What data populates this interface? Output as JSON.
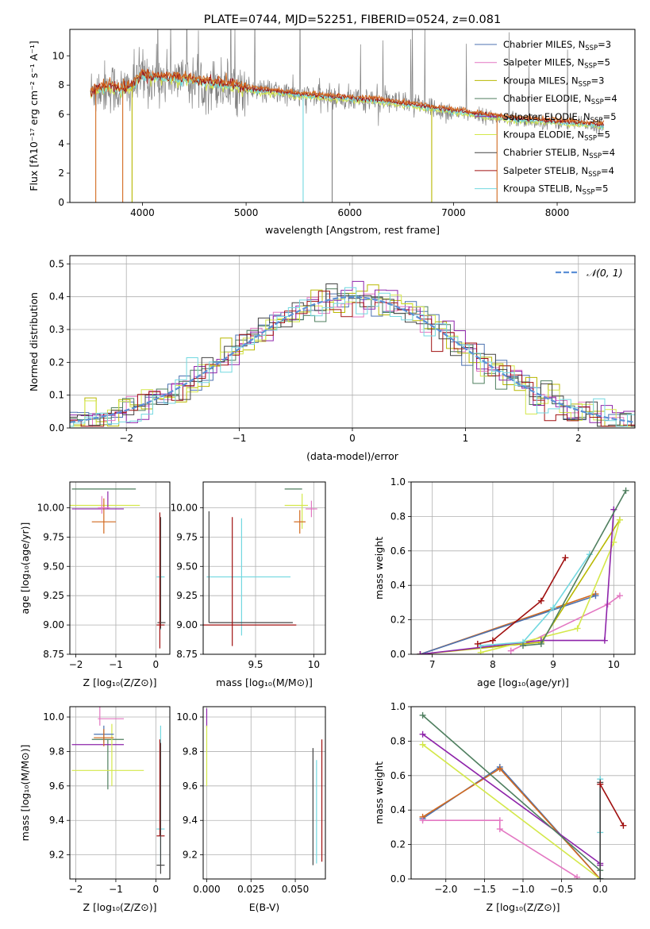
{
  "colors": {
    "chabrier_miles": "#4c72b0",
    "salpeter_miles": "#e377c2",
    "kroupa_miles": "#b8b800",
    "chabrier_elodie": "#4f7f5f",
    "salpeter_elodie": "#8e24aa",
    "kroupa_elodie": "#d4e84a",
    "chabrier_stelib": "#444444",
    "salpeter_stelib": "#a01010",
    "kroupa_stelib": "#72d8e0",
    "orange": "#d2691e",
    "gray": "#808080",
    "gauss": "#5b8fd6"
  },
  "chart_data": [
    {
      "id": "spectrum",
      "type": "line",
      "title": "PLATE=0744, MJD=52251, FIBERID=0524, z=0.081",
      "xlabel": "wavelength [Angstrom, rest frame]",
      "ylabel": "Flux [fλ10⁻¹⁷ erg cm⁻² s⁻¹ A⁻¹]",
      "xlim": [
        3300,
        8750
      ],
      "ylim": [
        0,
        11.8
      ],
      "xticks": [
        4000,
        5000,
        6000,
        7000,
        8000
      ],
      "yticks": [
        0,
        2,
        4,
        6,
        8,
        10
      ],
      "grid": false,
      "legend_position": "top-right",
      "data_range": [
        3500,
        8450
      ],
      "continuum": {
        "x": [
          3500,
          3600,
          3700,
          3800,
          3900,
          4000,
          4100,
          4300,
          4500,
          4700,
          4900,
          5100,
          5300,
          5500,
          5700,
          5900,
          6100,
          6300,
          6500,
          6700,
          6900,
          7100,
          7300,
          7500,
          7700,
          7900,
          8100,
          8300,
          8450
        ],
        "y": [
          7.5,
          7.8,
          7.9,
          7.6,
          7.9,
          8.7,
          8.5,
          8.5,
          8.3,
          8.1,
          7.9,
          7.6,
          7.5,
          7.3,
          7.2,
          7.1,
          7.0,
          6.9,
          6.7,
          6.5,
          6.3,
          6.1,
          5.9,
          5.7,
          5.6,
          5.5,
          5.4,
          5.3,
          5.2
        ]
      },
      "series": [
        {
          "name": "Chabrier MILES, N_SSP=3",
          "label_main": "Chabrier MILES, N",
          "label_sub": "SSP",
          "label_tail": "=3",
          "color": "#4c72b0"
        },
        {
          "name": "Salpeter MILES, N_SSP=5",
          "label_main": "Salpeter MILES, N",
          "label_sub": "SSP",
          "label_tail": "=5",
          "color": "#e377c2"
        },
        {
          "name": "Kroupa MILES, N_SSP=3",
          "label_main": "Kroupa MILES, N",
          "label_sub": "SSP",
          "label_tail": "=3",
          "color": "#b8b800"
        },
        {
          "name": "Chabrier ELODIE, N_SSP=4",
          "label_main": "Chabrier ELODIE, N",
          "label_sub": "SSP",
          "label_tail": "=4",
          "color": "#4f7f5f"
        },
        {
          "name": "Salpeter ELODIE, N_SSP=5",
          "label_main": "Salpeter ELODIE, N",
          "label_sub": "SSP",
          "label_tail": "=5",
          "color": "#8e24aa"
        },
        {
          "name": "Kroupa ELODIE, N_SSP=5",
          "label_main": "Kroupa ELODIE, N",
          "label_sub": "SSP",
          "label_tail": "=5",
          "color": "#d4e84a"
        },
        {
          "name": "Chabrier STELIB, N_SSP=4",
          "label_main": "Chabrier STELIB, N",
          "label_sub": "SSP",
          "label_tail": "=4",
          "color": "#444444"
        },
        {
          "name": "Salpeter STELIB, N_SSP=4",
          "label_main": "Salpeter STELIB, N",
          "label_sub": "SSP",
          "label_tail": "=4",
          "color": "#a01010"
        },
        {
          "name": "Kroupa STELIB, N_SSP=5",
          "label_main": "Kroupa STELIB, N",
          "label_sub": "SSP",
          "label_tail": "=5",
          "color": "#72d8e0"
        }
      ],
      "dropouts": [
        {
          "x": 3550,
          "color": "#d2691e"
        },
        {
          "x": 3810,
          "color": "#d2691e"
        },
        {
          "x": 3900,
          "color": "#b8b800"
        },
        {
          "x": 5550,
          "color": "#72d8e0"
        },
        {
          "x": 5830,
          "color": "#808080"
        },
        {
          "x": 6790,
          "color": "#b8b800"
        },
        {
          "x": 7420,
          "color": "#d2691e"
        }
      ]
    },
    {
      "id": "residuals",
      "type": "histogram",
      "xlabel": "(data-model)/error",
      "ylabel": "Normed distribution",
      "xlim": [
        -2.5,
        2.5
      ],
      "ylim": [
        0,
        0.525
      ],
      "xticks": [
        -2,
        -1,
        0,
        1,
        2
      ],
      "yticks": [
        0.0,
        0.1,
        0.2,
        0.3,
        0.4,
        0.5
      ],
      "grid": true,
      "legend_position": "top-right",
      "gauss_label": "𝒩(0, 1)",
      "bin_width": 0.1,
      "gauss_mean": 0,
      "gauss_sigma": 1
    },
    {
      "id": "age_vs_z",
      "type": "errorbar",
      "xlabel": "Z [log₁₀(Z/Z⊙)]",
      "ylabel": "age  [log₁₀(age/yr)]",
      "xlim": [
        -2.15,
        0.35
      ],
      "ylim": [
        8.75,
        10.22
      ],
      "xticks": [
        -2,
        -1,
        0
      ],
      "yticks": [
        8.75,
        9.0,
        9.25,
        9.5,
        9.75,
        10.0
      ],
      "grid": true,
      "points": [
        {
          "x": -1.1,
          "y": 10.16,
          "xerr": [
            1.0,
            0.6
          ],
          "yerr": [
            0,
            0
          ],
          "color": "#4f7f5f"
        },
        {
          "x": -1.0,
          "y": 10.02,
          "xerr": [
            1.2,
            0.6
          ],
          "yerr": [
            0,
            0
          ],
          "color": "#d4e84a"
        },
        {
          "x": -1.2,
          "y": 9.99,
          "xerr": [
            0.9,
            0.4
          ],
          "yerr": [
            0.0,
            0.15
          ],
          "color": "#8e24aa"
        },
        {
          "x": -1.3,
          "y": 9.88,
          "xerr": [
            0.3,
            0.3
          ],
          "yerr": [
            0.1,
            0.2
          ],
          "color": "#d2691e"
        },
        {
          "x": -1.35,
          "y": 10.0,
          "xerr": [
            0.1,
            0.2
          ],
          "yerr": [
            0.05,
            0.1
          ],
          "color": "#e377c2"
        },
        {
          "x": 0.12,
          "y": 9.41,
          "xerr": [
            0.1,
            0.1
          ],
          "yerr": [
            0.45,
            0.5
          ],
          "color": "#72d8e0"
        },
        {
          "x": 0.12,
          "y": 9.02,
          "xerr": [
            0.08,
            0.12
          ],
          "yerr": [
            0.05,
            0.9
          ],
          "color": "#444444"
        },
        {
          "x": 0.1,
          "y": 9.0,
          "xerr": [
            0.08,
            0.12
          ],
          "yerr": [
            0.2,
            0.96
          ],
          "color": "#a01010"
        }
      ]
    },
    {
      "id": "age_vs_mass",
      "type": "errorbar",
      "xlabel": "mass [log₁₀(M/M⊙)]",
      "ylabel": "",
      "xlim": [
        9.05,
        10.1
      ],
      "ylim": [
        8.75,
        10.22
      ],
      "xticks": [
        9.5,
        10.0
      ],
      "yticks": [
        8.75,
        9.0,
        9.25,
        9.5,
        9.75,
        10.0
      ],
      "grid": true,
      "points": [
        {
          "x": 9.85,
          "y": 10.16,
          "xerr": [
            0.1,
            0.05
          ],
          "yerr": [
            0,
            0
          ],
          "color": "#4f7f5f"
        },
        {
          "x": 9.9,
          "y": 10.02,
          "xerr": [
            0.15,
            0.05
          ],
          "yerr": [
            0.2,
            0.1
          ],
          "color": "#d4e84a"
        },
        {
          "x": 9.98,
          "y": 9.99,
          "xerr": [
            0.05,
            0.05
          ],
          "yerr": [
            0.07,
            0.07
          ],
          "color": "#e377c2"
        },
        {
          "x": 9.88,
          "y": 9.88,
          "xerr": [
            0.05,
            0.05
          ],
          "yerr": [
            0.1,
            0.1
          ],
          "color": "#d2691e"
        },
        {
          "x": 9.38,
          "y": 9.41,
          "xerr": [
            0.3,
            0.42
          ],
          "yerr": [
            0.5,
            0.5
          ],
          "color": "#72d8e0"
        },
        {
          "x": 9.1,
          "y": 9.02,
          "xerr": [
            0.0,
            0.72
          ],
          "yerr": [
            0.0,
            0.95
          ],
          "color": "#444444"
        },
        {
          "x": 9.3,
          "y": 9.0,
          "xerr": [
            0.25,
            0.55
          ],
          "yerr": [
            0.18,
            0.92
          ],
          "color": "#a01010"
        }
      ]
    },
    {
      "id": "weight_vs_age",
      "type": "line",
      "xlabel": "age  [log₁₀(age/yr)]",
      "ylabel": "mass weight",
      "xlim": [
        6.65,
        10.35
      ],
      "ylim": [
        0,
        1.0
      ],
      "xticks": [
        7,
        8,
        9,
        10
      ],
      "yticks": [
        0.0,
        0.2,
        0.4,
        0.6,
        0.8,
        1.0
      ],
      "grid": true,
      "series": [
        {
          "color": "#d2691e",
          "x": [
            6.8,
            9.7
          ],
          "y": [
            0.0,
            0.35
          ]
        },
        {
          "color": "#4c72b0",
          "x": [
            6.8,
            9.7
          ],
          "y": [
            0.0,
            0.34
          ]
        },
        {
          "color": "#e377c2",
          "x": [
            8.3,
            9.9,
            10.1
          ],
          "y": [
            0.02,
            0.29,
            0.34
          ]
        },
        {
          "color": "#b8b800",
          "x": [
            6.8,
            8.8,
            10.1
          ],
          "y": [
            0.0,
            0.07,
            0.78
          ]
        },
        {
          "color": "#d4e84a",
          "x": [
            7.8,
            9.4,
            10.0,
            10.1
          ],
          "y": [
            0.01,
            0.15,
            0.65,
            0.78
          ]
        },
        {
          "color": "#8e24aa",
          "x": [
            6.8,
            8.8,
            9.85,
            10.0
          ],
          "y": [
            0.0,
            0.08,
            0.08,
            0.84
          ]
        },
        {
          "color": "#72d8e0",
          "x": [
            7.8,
            8.5,
            9.0,
            9.6
          ],
          "y": [
            0.05,
            0.07,
            0.27,
            0.58
          ]
        },
        {
          "color": "#4f7f5f",
          "x": [
            8.5,
            8.8,
            10.2
          ],
          "y": [
            0.05,
            0.06,
            0.95
          ]
        },
        {
          "color": "#a01010",
          "x": [
            7.75,
            8.0,
            8.8,
            9.2
          ],
          "y": [
            0.06,
            0.08,
            0.31,
            0.56
          ]
        }
      ]
    },
    {
      "id": "mass_vs_z",
      "type": "errorbar",
      "xlabel": "Z [log₁₀(Z/Z⊙)]",
      "ylabel": "mass [log₁₀(M/M⊙)]",
      "xlim": [
        -2.15,
        0.35
      ],
      "ylim": [
        9.06,
        10.06
      ],
      "xticks": [
        -2,
        -1,
        0
      ],
      "yticks": [
        9.2,
        9.4,
        9.6,
        9.8,
        10.0
      ],
      "grid": true,
      "points": [
        {
          "x": -1.2,
          "y": 9.87,
          "xerr": [
            0.4,
            0.4
          ],
          "yerr": [
            0.29,
            0.0
          ],
          "color": "#4f7f5f"
        },
        {
          "x": -1.2,
          "y": 9.84,
          "xerr": [
            0.9,
            0.4
          ],
          "yerr": [
            0.0,
            0.0
          ],
          "color": "#8e24aa"
        },
        {
          "x": -1.1,
          "y": 9.69,
          "xerr": [
            1.0,
            0.8
          ],
          "yerr": [
            0.09,
            0.27
          ],
          "color": "#d4e84a"
        },
        {
          "x": -1.3,
          "y": 9.9,
          "xerr": [
            0.25,
            0.25
          ],
          "yerr": [
            0.05,
            0.05
          ],
          "color": "#4c72b0"
        },
        {
          "x": -1.3,
          "y": 9.88,
          "xerr": [
            0.25,
            0.25
          ],
          "yerr": [
            0.05,
            0.05
          ],
          "color": "#d2691e"
        },
        {
          "x": -1.4,
          "y": 9.99,
          "xerr": [
            0.05,
            0.6
          ],
          "yerr": [
            0.04,
            0.07
          ],
          "color": "#e377c2"
        },
        {
          "x": 0.12,
          "y": 9.35,
          "xerr": [
            0.1,
            0.1
          ],
          "yerr": [
            0.2,
            0.6
          ],
          "color": "#72d8e0"
        },
        {
          "x": 0.1,
          "y": 9.31,
          "xerr": [
            0.08,
            0.12
          ],
          "yerr": [
            0.0,
            0.56
          ],
          "color": "#a01010"
        },
        {
          "x": 0.12,
          "y": 9.14,
          "xerr": [
            0.1,
            0.1
          ],
          "yerr": [
            0.05,
            0.71
          ],
          "color": "#444444"
        }
      ]
    },
    {
      "id": "mass_vs_ebv",
      "type": "errorbar",
      "xlabel": "E(B-V)",
      "ylabel": "",
      "xlim": [
        -0.002,
        0.067
      ],
      "ylim": [
        9.06,
        10.06
      ],
      "xticks": [
        0.0,
        0.025,
        0.05
      ],
      "xtick_labels": [
        "0.000",
        "0.025",
        "0.050"
      ],
      "yticks": [
        9.2,
        9.4,
        9.6,
        9.8,
        10.0
      ],
      "grid": true,
      "points": [
        {
          "x": 0.0,
          "y": 9.99,
          "xerr": [
            0,
            0
          ],
          "yerr": [
            0.05,
            0.06
          ],
          "color": "#8e24aa"
        },
        {
          "x": 0.0,
          "y": 9.6,
          "xerr": [
            0,
            0
          ],
          "yerr": [
            0.0,
            0.35
          ],
          "color": "#d4e84a"
        },
        {
          "x": 0.06,
          "y": 9.14,
          "xerr": [
            0,
            0
          ],
          "yerr": [
            0.0,
            0.68
          ],
          "color": "#444444"
        },
        {
          "x": 0.062,
          "y": 9.35,
          "xerr": [
            0,
            0
          ],
          "yerr": [
            0.2,
            0.4
          ],
          "color": "#72d8e0"
        },
        {
          "x": 0.065,
          "y": 9.31,
          "xerr": [
            0,
            0
          ],
          "yerr": [
            0.15,
            0.56
          ],
          "color": "#a01010"
        }
      ]
    },
    {
      "id": "weight_vs_z",
      "type": "line",
      "xlabel": "Z [log₁₀(Z/Z⊙)]",
      "ylabel": "mass weight",
      "xlim": [
        -2.45,
        0.45
      ],
      "ylim": [
        0,
        1.0
      ],
      "xticks": [
        -2.0,
        -1.5,
        -1.0,
        -0.5,
        0.0
      ],
      "xtick_labels": [
        "−2.0",
        "−1.5",
        "−1.0",
        "−0.5",
        "0.0"
      ],
      "yticks": [
        0.0,
        0.2,
        0.4,
        0.6,
        0.8,
        1.0
      ],
      "grid": true,
      "series": [
        {
          "color": "#4c72b0",
          "x": [
            -2.3,
            -1.3,
            0.0
          ],
          "y": [
            0.35,
            0.65,
            0.0
          ]
        },
        {
          "color": "#d2691e",
          "x": [
            -2.3,
            -1.3,
            0.0
          ],
          "y": [
            0.36,
            0.64,
            0.0
          ]
        },
        {
          "color": "#e377c2",
          "x": [
            -2.3,
            -1.3,
            -1.3,
            -0.3
          ],
          "y": [
            0.34,
            0.34,
            0.29,
            0.01
          ]
        },
        {
          "color": "#d4e84a",
          "x": [
            -2.3,
            0.0
          ],
          "y": [
            0.78,
            0.0
          ]
        },
        {
          "color": "#8e24aa",
          "x": [
            -2.3,
            0.0,
            0.0
          ],
          "y": [
            0.84,
            0.09,
            0.08
          ]
        },
        {
          "color": "#4f7f5f",
          "x": [
            -2.3,
            0.0,
            0.0
          ],
          "y": [
            0.95,
            0.05,
            0.0
          ]
        },
        {
          "color": "#72d8e0",
          "x": [
            0.0,
            0.0,
            0.0
          ],
          "y": [
            0.58,
            0.27,
            0.0
          ]
        },
        {
          "color": "#444444",
          "x": [
            0.0,
            0.0
          ],
          "y": [
            0.56,
            0.0
          ]
        },
        {
          "color": "#a01010",
          "x": [
            0.0,
            0.3
          ],
          "y": [
            0.55,
            0.31
          ]
        }
      ]
    }
  ]
}
